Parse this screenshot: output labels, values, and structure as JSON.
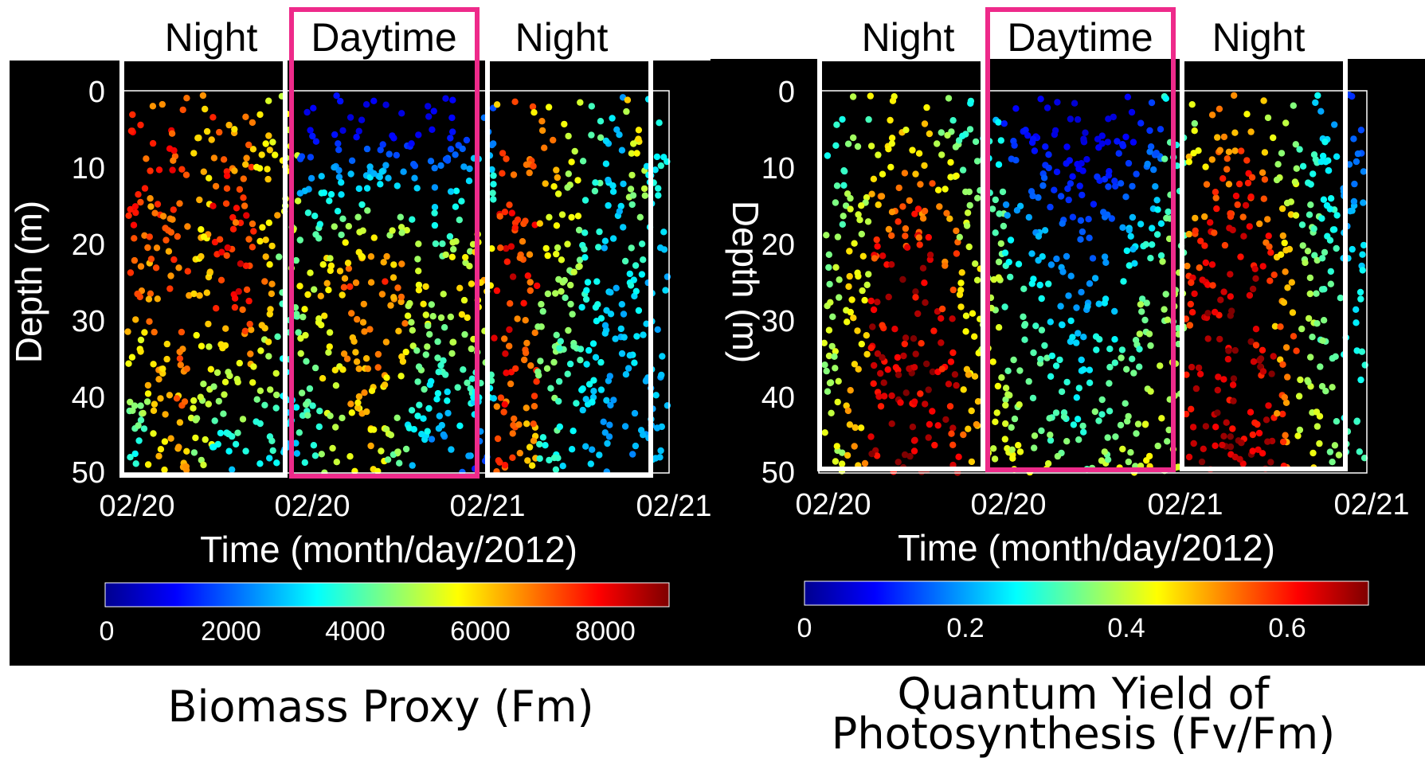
{
  "chart_data": [
    {
      "type": "scatter",
      "period_labels": [
        "Night",
        "Daytime",
        "Night"
      ],
      "xlabel": "Time (month/day/2012)",
      "ylabel": "Depth (m)",
      "x_ticks": [
        "02/20",
        "02/20",
        "02/21",
        "02/21"
      ],
      "y_ticks": [
        0,
        10,
        20,
        30,
        40,
        50
      ],
      "ylim": [
        0,
        50
      ],
      "y_reversed": true,
      "colormap": "jet",
      "colorbar": {
        "min": 0,
        "max": 9000,
        "ticks": [
          0,
          2000,
          4000,
          6000,
          8000
        ]
      },
      "caption": "Biomass Proxy (Fm)",
      "casts": [
        {
          "top": 7600,
          "mid": 7000,
          "bottom": 3400
        },
        {
          "top": 7300,
          "mid": 6600,
          "bottom": 5800
        },
        {
          "top": 7400,
          "mid": 7200,
          "bottom": 6200
        },
        {
          "top": 6200,
          "mid": 6000,
          "bottom": 4800
        },
        {
          "top": 7100,
          "mid": 7600,
          "bottom": 2600
        },
        {
          "top": 6400,
          "mid": 8200,
          "bottom": 3000
        },
        {
          "top": 5800,
          "mid": 6400,
          "bottom": 3200
        },
        {
          "top": 5600,
          "mid": 4600,
          "bottom": 2600
        },
        {
          "top": 1000,
          "mid": 5400,
          "bottom": 3600
        },
        {
          "top": 1200,
          "mid": 6200,
          "bottom": 4600
        },
        {
          "top": 800,
          "mid": 7000,
          "bottom": 5400
        },
        {
          "top": 1000,
          "mid": 7200,
          "bottom": 5600
        },
        {
          "top": 900,
          "mid": 7000,
          "bottom": 4400
        },
        {
          "top": 800,
          "mid": 5800,
          "bottom": 2600
        },
        {
          "top": 1000,
          "mid": 5400,
          "bottom": 1800
        },
        {
          "top": 1200,
          "mid": 6000,
          "bottom": 2200
        },
        {
          "top": 2000,
          "mid": 6400,
          "bottom": 1400
        },
        {
          "top": 7200,
          "mid": 7800,
          "bottom": 7000
        },
        {
          "top": 7000,
          "mid": 7400,
          "bottom": 6400
        },
        {
          "top": 6400,
          "mid": 5200,
          "bottom": 3600
        },
        {
          "top": 5400,
          "mid": 4800,
          "bottom": 3000
        },
        {
          "top": 4200,
          "mid": 3600,
          "bottom": 2800
        },
        {
          "top": 3000,
          "mid": 2800,
          "bottom": 2600
        },
        {
          "top": 5600,
          "mid": 3400,
          "bottom": 2400
        },
        {
          "top": 3600,
          "mid": 2800,
          "bottom": 2800
        }
      ]
    },
    {
      "type": "scatter",
      "period_labels": [
        "Night",
        "Daytime",
        "Night"
      ],
      "xlabel": "Time (month/day/2012)",
      "ylabel": "Depth (m)",
      "x_ticks": [
        "02/20",
        "02/20",
        "02/21",
        "02/21"
      ],
      "y_ticks": [
        0,
        10,
        20,
        30,
        40,
        50
      ],
      "ylim": [
        0,
        50
      ],
      "y_reversed": true,
      "colormap": "jet",
      "colorbar": {
        "min": 0,
        "max": 0.7,
        "ticks": [
          0,
          0.2,
          0.4,
          0.6
        ]
      },
      "caption": "Quantum Yield of Photosynthesis (Fv/Fm)",
      "casts": [
        {
          "top": 0.28,
          "mid": 0.38,
          "bottom": 0.4
        },
        {
          "top": 0.36,
          "mid": 0.44,
          "bottom": 0.48
        },
        {
          "top": 0.42,
          "mid": 0.62,
          "bottom": 0.66
        },
        {
          "top": 0.44,
          "mid": 0.64,
          "bottom": 0.67
        },
        {
          "top": 0.46,
          "mid": 0.64,
          "bottom": 0.66
        },
        {
          "top": 0.36,
          "mid": 0.6,
          "bottom": 0.64
        },
        {
          "top": 0.3,
          "mid": 0.44,
          "bottom": 0.52
        },
        {
          "top": 0.26,
          "mid": 0.38,
          "bottom": 0.42
        },
        {
          "top": 0.1,
          "mid": 0.3,
          "bottom": 0.42
        },
        {
          "top": 0.08,
          "mid": 0.26,
          "bottom": 0.4
        },
        {
          "top": 0.06,
          "mid": 0.2,
          "bottom": 0.36
        },
        {
          "top": 0.05,
          "mid": 0.18,
          "bottom": 0.34
        },
        {
          "top": 0.06,
          "mid": 0.22,
          "bottom": 0.38
        },
        {
          "top": 0.08,
          "mid": 0.28,
          "bottom": 0.4
        },
        {
          "top": 0.12,
          "mid": 0.34,
          "bottom": 0.42
        },
        {
          "top": 0.3,
          "mid": 0.36,
          "bottom": 0.4
        },
        {
          "top": 0.44,
          "mid": 0.6,
          "bottom": 0.64
        },
        {
          "top": 0.5,
          "mid": 0.64,
          "bottom": 0.66
        },
        {
          "top": 0.52,
          "mid": 0.66,
          "bottom": 0.67
        },
        {
          "top": 0.46,
          "mid": 0.62,
          "bottom": 0.65
        },
        {
          "top": 0.36,
          "mid": 0.5,
          "bottom": 0.56
        },
        {
          "top": 0.28,
          "mid": 0.36,
          "bottom": 0.42
        },
        {
          "top": 0.24,
          "mid": 0.32,
          "bottom": 0.36
        },
        {
          "top": 0.14,
          "mid": 0.26,
          "bottom": 0.3
        }
      ]
    }
  ]
}
